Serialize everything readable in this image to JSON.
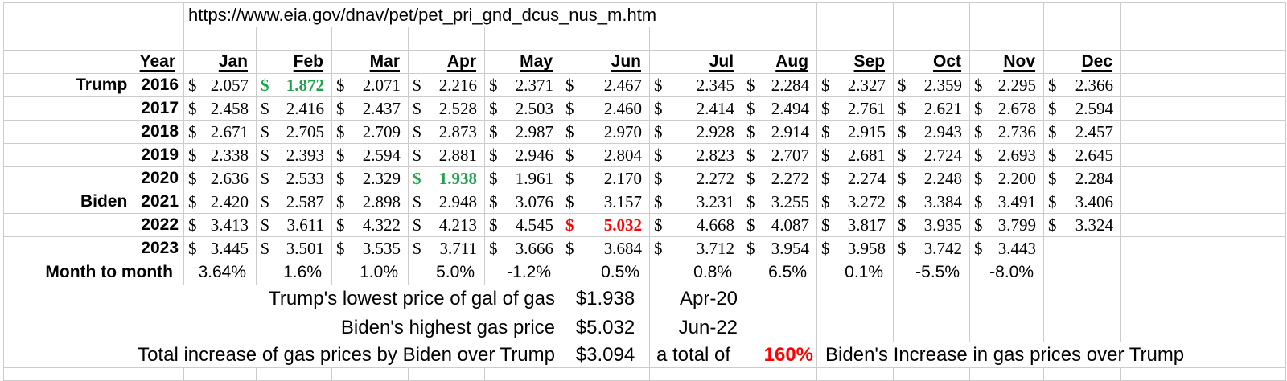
{
  "url": "https://www.eia.gov/dnav/pet/pet_pri_gnd_dcus_nus_m.htm",
  "table": {
    "year_header": "Year",
    "currency": "$",
    "months": [
      "Jan",
      "Feb",
      "Mar",
      "Apr",
      "May",
      "Jun",
      "Jul",
      "Aug",
      "Sep",
      "Oct",
      "Nov",
      "Dec"
    ],
    "rows": [
      {
        "president": "Trump",
        "year": "2016",
        "values": [
          "2.057",
          "1.872",
          "2.071",
          "2.216",
          "2.371",
          "2.467",
          "2.345",
          "2.284",
          "2.327",
          "2.359",
          "2.295",
          "2.366"
        ],
        "highlight": {
          "1": "green"
        }
      },
      {
        "president": "",
        "year": "2017",
        "values": [
          "2.458",
          "2.416",
          "2.437",
          "2.528",
          "2.503",
          "2.460",
          "2.414",
          "2.494",
          "2.761",
          "2.621",
          "2.678",
          "2.594"
        ]
      },
      {
        "president": "",
        "year": "2018",
        "values": [
          "2.671",
          "2.705",
          "2.709",
          "2.873",
          "2.987",
          "2.970",
          "2.928",
          "2.914",
          "2.915",
          "2.943",
          "2.736",
          "2.457"
        ]
      },
      {
        "president": "",
        "year": "2019",
        "values": [
          "2.338",
          "2.393",
          "2.594",
          "2.881",
          "2.946",
          "2.804",
          "2.823",
          "2.707",
          "2.681",
          "2.724",
          "2.693",
          "2.645"
        ]
      },
      {
        "president": "",
        "year": "2020",
        "values": [
          "2.636",
          "2.533",
          "2.329",
          "1.938",
          "1.961",
          "2.170",
          "2.272",
          "2.272",
          "2.274",
          "2.248",
          "2.200",
          "2.284"
        ],
        "highlight": {
          "3": "green"
        }
      },
      {
        "president": "Biden",
        "year": "2021",
        "values": [
          "2.420",
          "2.587",
          "2.898",
          "2.948",
          "3.076",
          "3.157",
          "3.231",
          "3.255",
          "3.272",
          "3.384",
          "3.491",
          "3.406"
        ]
      },
      {
        "president": "",
        "year": "2022",
        "values": [
          "3.413",
          "3.611",
          "4.322",
          "4.213",
          "4.545",
          "5.032",
          "4.668",
          "4.087",
          "3.817",
          "3.935",
          "3.799",
          "3.324"
        ],
        "highlight": {
          "5": "red"
        }
      },
      {
        "president": "",
        "year": "2023",
        "values": [
          "3.445",
          "3.501",
          "3.535",
          "3.711",
          "3.666",
          "3.684",
          "3.712",
          "3.954",
          "3.958",
          "3.742",
          "3.443",
          ""
        ]
      }
    ]
  },
  "m2m": {
    "label": "Month to month",
    "values": [
      "3.64%",
      "1.6%",
      "1.0%",
      "5.0%",
      "-1.2%",
      "0.5%",
      "0.8%",
      "6.5%",
      "0.1%",
      "-5.5%",
      "-8.0%",
      ""
    ]
  },
  "summary": {
    "lowest": {
      "label": "Trump's lowest price of gal of gas",
      "value": "$1.938",
      "date": "Apr-20"
    },
    "highest": {
      "label": "Biden's highest gas price",
      "value": "$5.032",
      "date": "Jun-22"
    },
    "total": {
      "label": "Total increase of gas prices by Biden over Trump",
      "value": "$3.094",
      "middle": "a total of",
      "percent": "160%",
      "note": "Biden's Increase in gas prices over Trump"
    }
  },
  "colors": {
    "grid": "#cccccc",
    "green": "#22a14e",
    "red": "#ff0000"
  }
}
